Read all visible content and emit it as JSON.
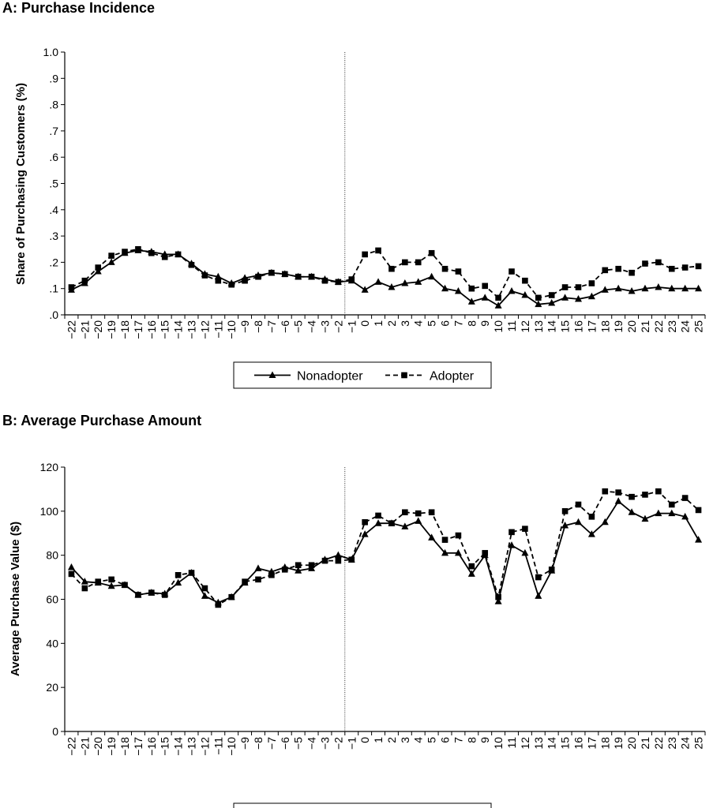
{
  "chart_data": [
    {
      "type": "line",
      "title": "A: Purchase Incidence",
      "xlabel": "",
      "ylabel": "Share of Purchasing Customers (%)",
      "ylim": [
        0,
        1.0
      ],
      "y_ticks": [
        ".0",
        ".1",
        ".2",
        ".3",
        ".4",
        ".5",
        ".6",
        ".7",
        ".8",
        ".9",
        "1.0"
      ],
      "x": [
        "−22",
        "−21",
        "−20",
        "−19",
        "−18",
        "−17",
        "−16",
        "−15",
        "−14",
        "−13",
        "−12",
        "−11",
        "−10",
        "−9",
        "−8",
        "−7",
        "−6",
        "−5",
        "−4",
        "−3",
        "−2",
        "−1",
        "0",
        "1",
        "2",
        "3",
        "4",
        "5",
        "6",
        "7",
        "8",
        "9",
        "10",
        "11",
        "12",
        "13",
        "14",
        "15",
        "16",
        "17",
        "18",
        "19",
        "20",
        "21",
        "22",
        "23",
        "24",
        "25"
      ],
      "vertical_line_at": "−1",
      "grid": false,
      "legend_position": "bottom",
      "series": [
        {
          "name": "Nonadopter",
          "marker": "triangle",
          "line_style": "solid",
          "values": [
            0.095,
            0.12,
            0.165,
            0.2,
            0.235,
            0.245,
            0.24,
            0.23,
            0.23,
            0.195,
            0.155,
            0.145,
            0.12,
            0.14,
            0.15,
            0.16,
            0.155,
            0.145,
            0.145,
            0.135,
            0.125,
            0.13,
            0.095,
            0.125,
            0.105,
            0.12,
            0.125,
            0.145,
            0.1,
            0.09,
            0.05,
            0.065,
            0.035,
            0.09,
            0.075,
            0.04,
            0.045,
            0.065,
            0.06,
            0.07,
            0.095,
            0.1,
            0.09,
            0.1,
            0.105,
            0.1,
            0.1,
            0.1
          ]
        },
        {
          "name": "Adopter",
          "marker": "square",
          "line_style": "dashed",
          "values": [
            0.105,
            0.13,
            0.18,
            0.225,
            0.24,
            0.25,
            0.235,
            0.22,
            0.23,
            0.19,
            0.15,
            0.13,
            0.115,
            0.13,
            0.145,
            0.16,
            0.155,
            0.145,
            0.145,
            0.13,
            0.125,
            0.135,
            0.23,
            0.245,
            0.175,
            0.2,
            0.2,
            0.235,
            0.175,
            0.165,
            0.1,
            0.11,
            0.065,
            0.165,
            0.13,
            0.065,
            0.075,
            0.105,
            0.105,
            0.12,
            0.17,
            0.175,
            0.16,
            0.195,
            0.2,
            0.175,
            0.18,
            0.185
          ]
        }
      ]
    },
    {
      "type": "line",
      "title": "B: Average Purchase Amount",
      "xlabel": "",
      "ylabel": "Average Purchase Value ($)",
      "ylim": [
        0,
        120
      ],
      "y_ticks": [
        "0",
        "20",
        "40",
        "60",
        "80",
        "100",
        "120"
      ],
      "x": [
        "−22",
        "−21",
        "−20",
        "−19",
        "−18",
        "−17",
        "−16",
        "−15",
        "−14",
        "−13",
        "−12",
        "−11",
        "−10",
        "−9",
        "−8",
        "−7",
        "−6",
        "−5",
        "−4",
        "−3",
        "−2",
        "−1",
        "0",
        "1",
        "2",
        "3",
        "4",
        "5",
        "6",
        "7",
        "8",
        "9",
        "10",
        "11",
        "12",
        "13",
        "14",
        "15",
        "16",
        "17",
        "18",
        "19",
        "20",
        "21",
        "22",
        "23",
        "24",
        "25"
      ],
      "vertical_line_at": "−1",
      "grid": false,
      "legend_position": "bottom",
      "series": [
        {
          "name": "Nonadopter",
          "marker": "triangle",
          "line_style": "solid",
          "values": [
            74.5,
            68,
            67.5,
            66,
            66.5,
            62,
            63,
            62.5,
            67.5,
            72,
            61.5,
            58.5,
            61,
            67.5,
            74,
            72.5,
            74.5,
            73,
            74,
            78,
            80,
            78,
            89.5,
            94.5,
            94.5,
            93,
            95.5,
            88,
            81,
            81,
            71.5,
            80,
            59,
            84.5,
            81,
            61.5,
            73,
            93.5,
            95,
            89.5,
            95,
            104.5,
            99.5,
            96.5,
            99,
            99,
            97.5,
            87
          ]
        },
        {
          "name": "Adopter",
          "marker": "square",
          "line_style": "dashed",
          "values": [
            71.5,
            65,
            68,
            69,
            66.5,
            62,
            63,
            62,
            71,
            72,
            65,
            57.5,
            61,
            68,
            69,
            71,
            73.5,
            75.5,
            75.5,
            77.5,
            77.5,
            78,
            95,
            98,
            94.5,
            99.5,
            99,
            99.5,
            87,
            89,
            75,
            81,
            61,
            90.5,
            92,
            70,
            73.5,
            100,
            103,
            97.5,
            109,
            108.5,
            106.5,
            107.5,
            109,
            103,
            106,
            100.5
          ]
        }
      ]
    }
  ]
}
